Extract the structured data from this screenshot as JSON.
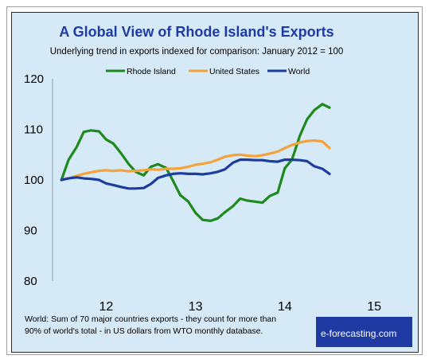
{
  "chart_data": {
    "type": "line",
    "title": "A Global View of Rhode Island's Exports",
    "subtitle": "Underlying trend in exports indexed for comparison: January 2012 = 100",
    "xlabel": "",
    "ylabel": "",
    "ylim": [
      80,
      120
    ],
    "yticks": [
      80,
      90,
      100,
      110,
      120
    ],
    "xlim": [
      11.4,
      15.4
    ],
    "xticks": [
      12,
      13,
      14,
      15
    ],
    "grid": false,
    "legend_position": "top",
    "series": [
      {
        "name": "Rhode Island",
        "color": "#1e8a1e",
        "x": [
          11.5,
          11.58,
          11.67,
          11.75,
          11.83,
          11.92,
          12.0,
          12.08,
          12.17,
          12.25,
          12.33,
          12.42,
          12.5,
          12.58,
          12.67,
          12.75,
          12.83,
          12.92,
          13.0,
          13.08,
          13.17,
          13.25,
          13.33,
          13.42,
          13.5,
          13.58,
          13.67,
          13.75,
          13.83,
          13.92,
          14.0,
          14.08,
          14.17,
          14.25,
          14.33,
          14.42,
          14.5
        ],
        "y": [
          100.0,
          104.0,
          106.5,
          109.5,
          109.8,
          109.6,
          108.0,
          107.2,
          105.2,
          103.2,
          101.6,
          100.9,
          102.6,
          103.1,
          102.4,
          99.8,
          97.0,
          95.7,
          93.5,
          92.1,
          91.9,
          92.4,
          93.6,
          94.8,
          96.3,
          95.9,
          95.7,
          95.5,
          96.8,
          97.5,
          102.3,
          104.0,
          108.8,
          112.0,
          113.8,
          115.0,
          114.3
        ]
      },
      {
        "name": "United States",
        "color": "#f5a23a",
        "x": [
          11.5,
          11.58,
          11.67,
          11.75,
          11.83,
          11.92,
          12.0,
          12.08,
          12.17,
          12.25,
          12.33,
          12.42,
          12.5,
          12.58,
          12.67,
          12.75,
          12.83,
          12.92,
          13.0,
          13.08,
          13.17,
          13.25,
          13.33,
          13.42,
          13.5,
          13.58,
          13.67,
          13.75,
          13.83,
          13.92,
          14.0,
          14.08,
          14.17,
          14.25,
          14.33,
          14.42,
          14.5
        ],
        "y": [
          100.0,
          100.3,
          100.8,
          101.2,
          101.5,
          101.8,
          101.9,
          101.8,
          101.9,
          101.7,
          101.8,
          101.9,
          102.1,
          102.0,
          102.2,
          102.2,
          102.3,
          102.6,
          103.0,
          103.2,
          103.5,
          104.0,
          104.6,
          104.9,
          105.0,
          104.8,
          104.7,
          104.9,
          105.2,
          105.6,
          106.3,
          106.9,
          107.4,
          107.7,
          107.8,
          107.6,
          106.3
        ]
      },
      {
        "name": "World",
        "color": "#1c3d9e",
        "x": [
          11.5,
          11.58,
          11.67,
          11.75,
          11.83,
          11.92,
          12.0,
          12.08,
          12.17,
          12.25,
          12.33,
          12.42,
          12.5,
          12.58,
          12.67,
          12.75,
          12.83,
          12.92,
          13.0,
          13.08,
          13.17,
          13.25,
          13.33,
          13.42,
          13.5,
          13.58,
          13.67,
          13.75,
          13.83,
          13.92,
          14.0,
          14.08,
          14.17,
          14.25,
          14.33,
          14.42,
          14.5
        ],
        "y": [
          100.0,
          100.3,
          100.5,
          100.3,
          100.2,
          100.0,
          99.3,
          99.0,
          98.6,
          98.3,
          98.3,
          98.4,
          99.2,
          100.4,
          100.9,
          101.2,
          101.3,
          101.2,
          101.2,
          101.1,
          101.3,
          101.6,
          102.1,
          103.4,
          104.0,
          104.0,
          103.9,
          103.9,
          103.7,
          103.6,
          104.0,
          104.0,
          103.9,
          103.7,
          102.7,
          102.2,
          101.2
        ]
      }
    ]
  },
  "footnote": {
    "line1": "World: Sum of 70 major countries exports - they count for more than",
    "line2": "90% of world's total - in US dollars from WTO monthly database."
  },
  "brand": {
    "label": "e-forecasting.com",
    "bg_color": "#1f3aa3"
  }
}
